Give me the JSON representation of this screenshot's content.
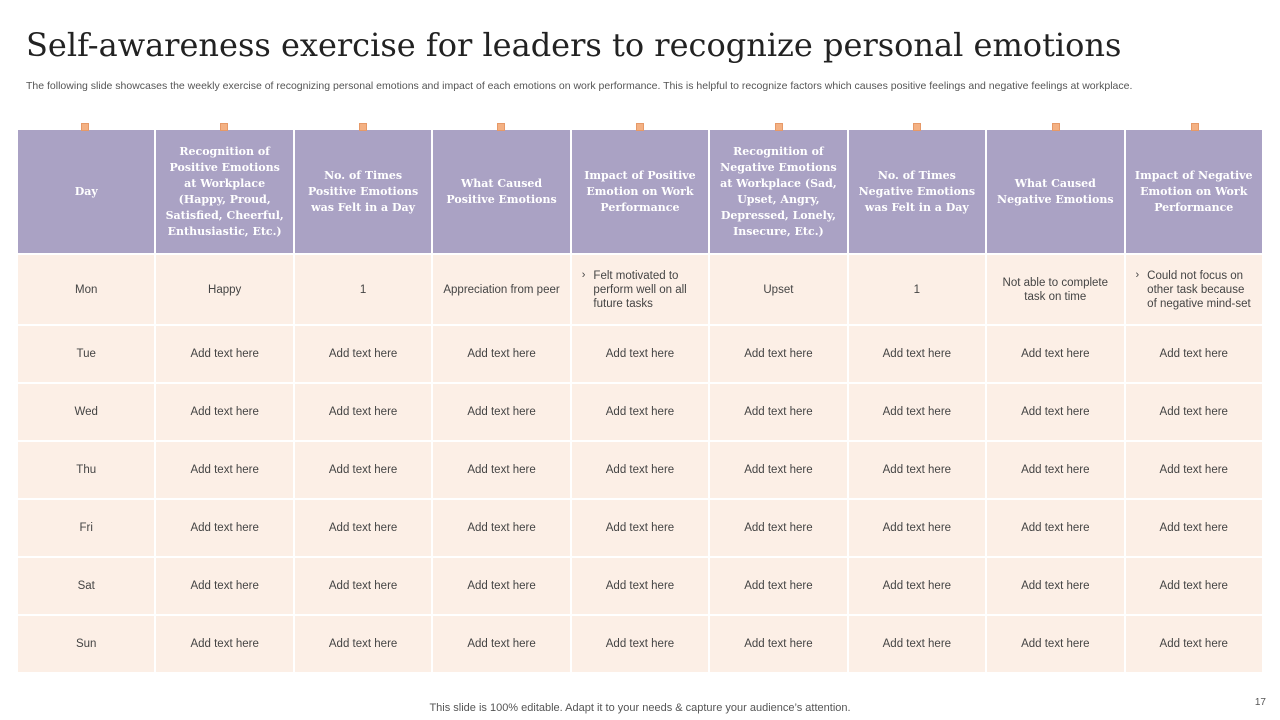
{
  "slide": {
    "title": "Self-awareness exercise for leaders to recognize personal emotions",
    "subtitle": "The following slide showcases the weekly exercise of recognizing personal emotions and impact of each emotions on work performance. This is helpful to recognize factors which causes positive feelings and negative feelings at workplace.",
    "footer": "This slide is 100% editable. Adapt it to your needs & capture your audience’s attention.",
    "page_number": "17"
  },
  "colors": {
    "header_bg": "#aaa2c4",
    "cell_bg": "#fcefe6",
    "marker": "#f4b183"
  },
  "table": {
    "headers": [
      "Day",
      "Recognition of Positive Emotions at Workplace (Happy, Proud, Satisfied, Cheerful, Enthusiastic, Etc.)",
      "No. of Times Positive Emotions was Felt in a Day",
      "What Caused Positive Emotions",
      "Impact of Positive Emotion on Work Performance",
      "Recognition of Negative Emotions at Workplace (Sad, Upset, Angry, Depressed, Lonely, Insecure, Etc.)",
      "No. of Times Negative Emotions was Felt in a Day",
      "What Caused Negative Emotions",
      "Impact of Negative Emotion on Work Performance"
    ],
    "rows": [
      {
        "day": "Mon",
        "cells": [
          "Happy",
          "1",
          "Appreciation from peer",
          "Felt motivated to perform well on all future tasks",
          "Upset",
          "1",
          "Not able to complete task on time",
          "Could not focus on other task because of negative mind-set"
        ]
      },
      {
        "day": "Tue",
        "cells": [
          "Add text here",
          "Add text here",
          "Add text here",
          "Add text here",
          "Add text here",
          "Add text here",
          "Add text here",
          "Add text here"
        ]
      },
      {
        "day": "Wed",
        "cells": [
          "Add text here",
          "Add text here",
          "Add text here",
          "Add text here",
          "Add text here",
          "Add text here",
          "Add text here",
          "Add text here"
        ]
      },
      {
        "day": "Thu",
        "cells": [
          "Add text here",
          "Add text here",
          "Add text here",
          "Add text here",
          "Add text here",
          "Add text here",
          "Add text here",
          "Add text here"
        ]
      },
      {
        "day": "Fri",
        "cells": [
          "Add text here",
          "Add text here",
          "Add text here",
          "Add text here",
          "Add text here",
          "Add text here",
          "Add text here",
          "Add text here"
        ]
      },
      {
        "day": "Sat",
        "cells": [
          "Add text here",
          "Add text here",
          "Add text here",
          "Add text here",
          "Add text here",
          "Add text here",
          "Add text here",
          "Add text here"
        ]
      },
      {
        "day": "Sun",
        "cells": [
          "Add text here",
          "Add text here",
          "Add text here",
          "Add text here",
          "Add text here",
          "Add text here",
          "Add text here",
          "Add text here"
        ]
      }
    ]
  }
}
